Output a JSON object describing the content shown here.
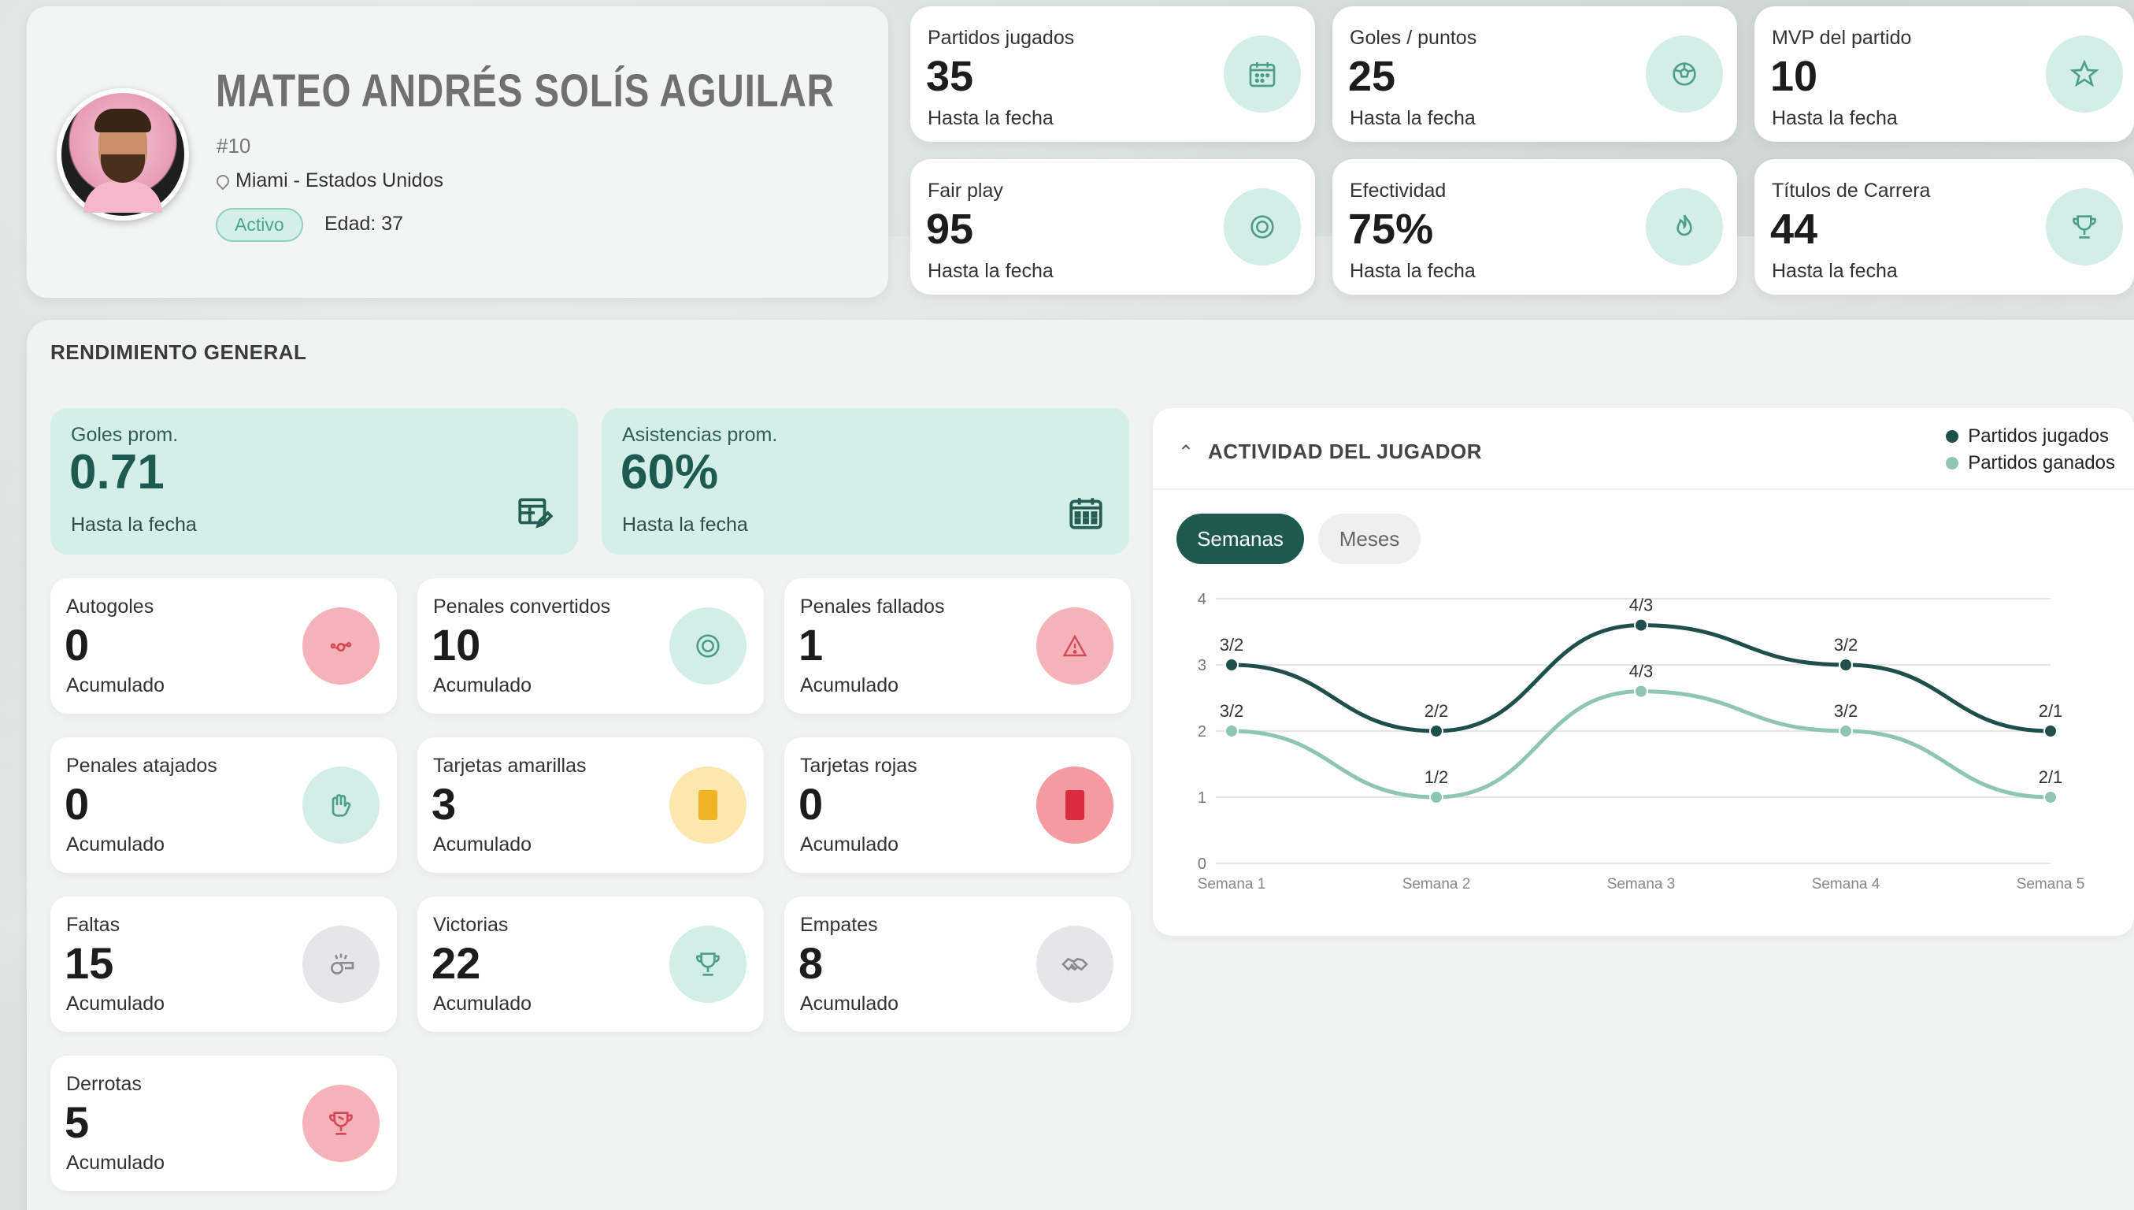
{
  "profile": {
    "name": "MATEO ANDRÉS SOLÍS AGUILAR",
    "number": "#10",
    "location": "Miami - Estados Unidos",
    "status": "Activo",
    "age": "Edad: 37"
  },
  "top_stats": [
    {
      "label": "Partidos jugados",
      "value": "35",
      "sub": "Hasta la fecha",
      "icon": "calendar-icon"
    },
    {
      "label": "Goles / puntos",
      "value": "25",
      "sub": "Hasta la fecha",
      "icon": "ball-icon"
    },
    {
      "label": "MVP del partido",
      "value": "10",
      "sub": "Hasta la fecha",
      "icon": "star-icon"
    },
    {
      "label": "Fair play",
      "value": "95",
      "sub": "Hasta la fecha",
      "icon": "target-icon"
    },
    {
      "label": "Efectividad",
      "value": "75%",
      "sub": "Hasta la fecha",
      "icon": "flame-icon"
    },
    {
      "label": "Títulos de Carrera",
      "value": "44",
      "sub": "Hasta la fecha",
      "icon": "trophy-icon"
    }
  ],
  "main": {
    "title": "RENDIMIENTO GENERAL",
    "highlights": [
      {
        "label": "Goles prom.",
        "value": "0.71",
        "sub": "Hasta la fecha",
        "icon": "table-edit-icon"
      },
      {
        "label": "Asistencias prom.",
        "value": "60%",
        "sub": "Hasta la fecha",
        "icon": "calendar-grid-icon"
      }
    ],
    "metrics": [
      {
        "label": "Autogoles",
        "value": "0",
        "sub": "Acumulado",
        "icon": "own-goal-icon",
        "tone": "pink"
      },
      {
        "label": "Penales convertidos",
        "value": "10",
        "sub": "Acumulado",
        "icon": "target-icon",
        "tone": "mint"
      },
      {
        "label": "Penales fallados",
        "value": "1",
        "sub": "Acumulado",
        "icon": "warning-icon",
        "tone": "pink"
      },
      {
        "label": "Penales atajados",
        "value": "0",
        "sub": "Acumulado",
        "icon": "glove-icon",
        "tone": "mint"
      },
      {
        "label": "Tarjetas amarillas",
        "value": "3",
        "sub": "Acumulado",
        "icon": "yellow-card-icon",
        "tone": "yellow"
      },
      {
        "label": "Tarjetas rojas",
        "value": "0",
        "sub": "Acumulado",
        "icon": "red-card-icon",
        "tone": "red"
      },
      {
        "label": "Faltas",
        "value": "15",
        "sub": "Acumulado",
        "icon": "whistle-icon",
        "tone": "gray"
      },
      {
        "label": "Victorias",
        "value": "22",
        "sub": "Acumulado",
        "icon": "trophy-icon",
        "tone": "mint"
      },
      {
        "label": "Empates",
        "value": "8",
        "sub": "Acumulado",
        "icon": "handshake-icon",
        "tone": "gray"
      },
      {
        "label": "Derrotas",
        "value": "5",
        "sub": "Acumulado",
        "icon": "trophy-down-icon",
        "tone": "pink"
      }
    ]
  },
  "activity": {
    "title": "ACTIVIDAD DEL JUGADOR",
    "tabs": [
      "Semanas",
      "Meses"
    ],
    "active_tab": "Semanas",
    "colors": {
      "series1": "#1f4f4a",
      "series2": "#8fc6b1",
      "grid": "#e6e6e6"
    }
  },
  "chart_data": {
    "type": "line",
    "title": "",
    "xlabel": "",
    "ylabel": "",
    "categories": [
      "Semana 1",
      "Semana 2",
      "Semana 3",
      "Semana 4",
      "Semana 5"
    ],
    "ylim": [
      0,
      4
    ],
    "yticks": [
      "0",
      "1",
      "2",
      "3",
      "4"
    ],
    "grid": true,
    "legend": "top-right",
    "series": [
      {
        "name": "Partidos jugados",
        "values": [
          3,
          2,
          3.6,
          3,
          2
        ],
        "labels": [
          "3/2",
          "2/2",
          "4/3",
          "3/2",
          "2/1"
        ]
      },
      {
        "name": "Partidos ganados",
        "values": [
          2,
          1,
          2.6,
          2,
          1
        ],
        "labels": [
          "3/2",
          "1/2",
          "4/3",
          "3/2",
          "2/1"
        ]
      }
    ]
  }
}
